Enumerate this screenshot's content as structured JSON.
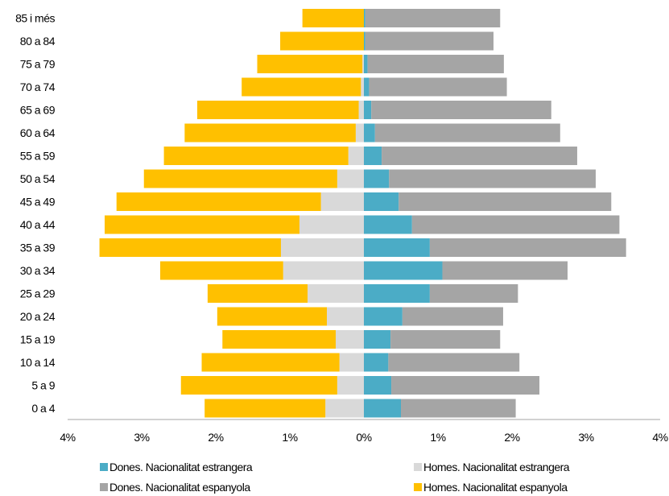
{
  "chart_data": {
    "type": "bar",
    "orientation": "horizontal",
    "subtype": "population-pyramid",
    "categories": [
      "85 i més",
      "80 a 84",
      "75 a 79",
      "70 a 74",
      "65 a 69",
      "60 a 64",
      "55 a 59",
      "50 a 54",
      "45 a 49",
      "40 a 44",
      "35 a 39",
      "30 a 34",
      "25 a 29",
      "20 a 24",
      "15 a 19",
      "10 a 14",
      "5 a 9",
      "0 a 4"
    ],
    "x_ticks": [
      "4%",
      "3%",
      "2%",
      "1%",
      "0%",
      "1%",
      "2%",
      "3%",
      "4%"
    ],
    "xlim": [
      -4,
      4
    ],
    "grid": false,
    "legend_position": "bottom",
    "series": [
      {
        "name": "Dones. Nacionalitat estrangera",
        "side": "right",
        "color": "#4BACC6",
        "values": [
          0.02,
          0.02,
          0.05,
          0.07,
          0.1,
          0.15,
          0.24,
          0.34,
          0.47,
          0.65,
          0.89,
          1.06,
          0.89,
          0.52,
          0.36,
          0.33,
          0.37,
          0.5
        ]
      },
      {
        "name": "Dones. Nacionalitat espanyola",
        "side": "right",
        "color": "#A5A5A5",
        "values": [
          1.82,
          1.73,
          1.84,
          1.86,
          2.43,
          2.5,
          2.64,
          2.79,
          2.87,
          2.8,
          2.65,
          1.69,
          1.19,
          1.36,
          1.48,
          1.77,
          2.0,
          1.55
        ]
      },
      {
        "name": "Homes. Nacionalitat estrangera",
        "side": "left",
        "color": "#D9D9D9",
        "values": [
          0.0,
          0.0,
          0.02,
          0.04,
          0.07,
          0.11,
          0.21,
          0.36,
          0.58,
          0.87,
          1.12,
          1.09,
          0.76,
          0.5,
          0.38,
          0.33,
          0.36,
          0.52
        ]
      },
      {
        "name": "Homes. Nacionalitat espanyola",
        "side": "left",
        "color": "#FFC000",
        "values": [
          0.83,
          1.13,
          1.42,
          1.61,
          2.18,
          2.31,
          2.49,
          2.61,
          2.76,
          2.63,
          2.45,
          1.66,
          1.35,
          1.48,
          1.53,
          1.86,
          2.11,
          1.63
        ]
      }
    ]
  },
  "legend": {
    "dones_estrangera": "Dones. Nacionalitat estrangera",
    "homes_estrangera": "Homes. Nacionalitat estrangera",
    "dones_espanyola": "Dones. Nacionalitat espanyola",
    "homes_espanyola": "Homes. Nacionalitat espanyola",
    "colors": {
      "dones_estrangera": "#4BACC6",
      "homes_estrangera": "#D9D9D9",
      "dones_espanyola": "#A5A5A5",
      "homes_espanyola": "#FFC000"
    }
  }
}
